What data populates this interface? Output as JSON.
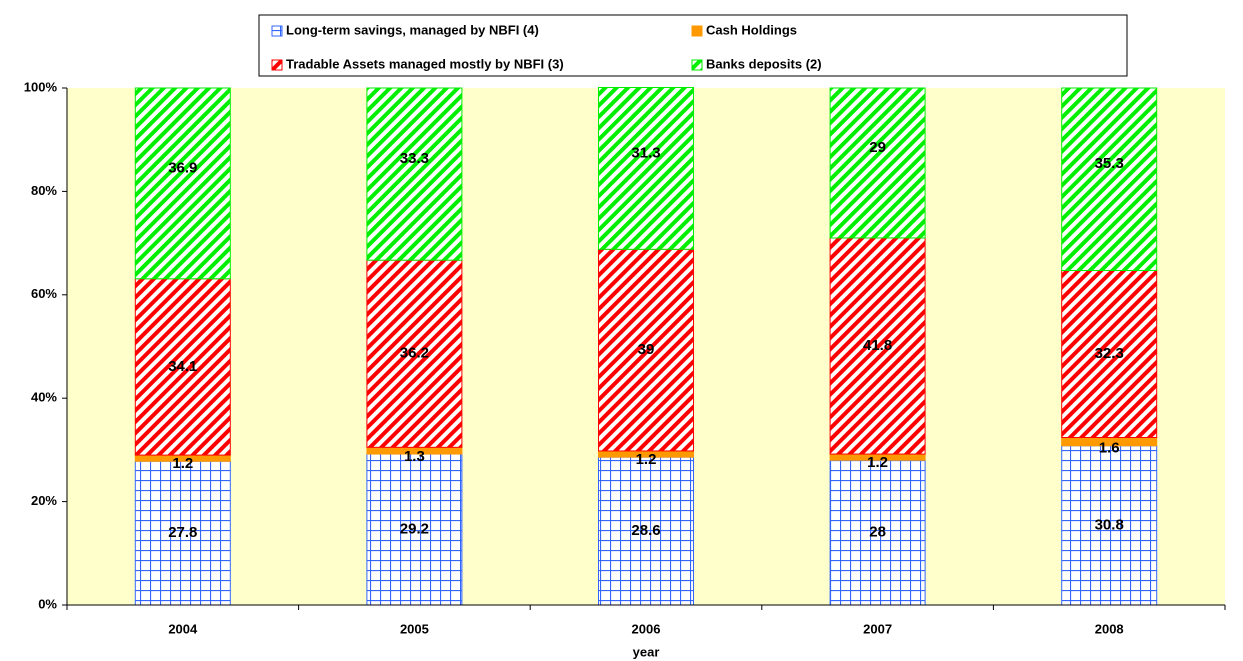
{
  "chart_data": {
    "type": "stacked_bar",
    "x_label": "year",
    "categories": [
      "2004",
      "2005",
      "2006",
      "2007",
      "2008"
    ],
    "series": [
      {
        "name": "Long-term savings, managed by NBFI (4)",
        "color": "#3366ff",
        "hatch": "grid",
        "values": [
          27.8,
          29.2,
          28.6,
          28,
          30.8
        ]
      },
      {
        "name": "Cash Holdings",
        "color": "#ff9900",
        "hatch": "solid",
        "values": [
          1.2,
          1.3,
          1.2,
          1.2,
          1.6
        ]
      },
      {
        "name": "Tradable Assets managed mostly by NBFI (3)",
        "color": "#ff0000",
        "hatch": "diagonal",
        "values": [
          34.1,
          36.2,
          39,
          41.8,
          32.3
        ]
      },
      {
        "name": "Banks deposits (2)",
        "color": "#00ee00",
        "hatch": "diagonal",
        "values": [
          36.9,
          33.3,
          31.3,
          29,
          35.3
        ]
      }
    ],
    "ylim": [
      0,
      100
    ],
    "yticks": [
      {
        "value": 0,
        "label": "0%"
      },
      {
        "value": 20,
        "label": "20%"
      },
      {
        "value": 40,
        "label": "40%"
      },
      {
        "value": 60,
        "label": "60%"
      },
      {
        "value": 80,
        "label": "80%"
      },
      {
        "value": 100,
        "label": "100%"
      }
    ],
    "plot_background": "#ffffcc"
  }
}
